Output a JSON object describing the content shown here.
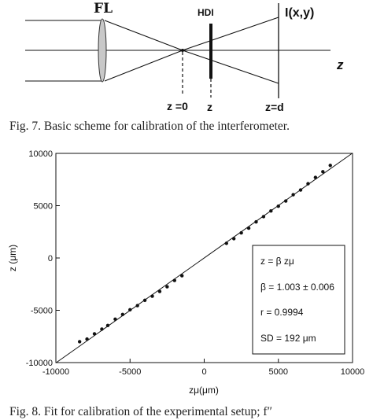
{
  "figure7": {
    "labels": {
      "lens": "FL",
      "hdi": "HDI",
      "intensity": "I(x,y)",
      "axis": "z",
      "z0": "z =0",
      "z": "z",
      "zd": "z=d"
    },
    "caption": "Fig. 7.   Basic scheme for calibration of the interferometer."
  },
  "figure8": {
    "caption": "Fig. 8.   Fit for calibration of the experimental setup; f″",
    "fitbox": [
      "z = β zμ",
      "β = 1.003 ± 0.006",
      "r = 0.9994",
      "SD = 192 μm"
    ]
  },
  "chart_data": {
    "type": "scatter",
    "xlabel": "zμ(μm)",
    "ylabel": "z (μm)",
    "xlim": [
      -10000,
      10000
    ],
    "ylim": [
      -10000,
      10000
    ],
    "xticks": [
      -10000,
      -5000,
      0,
      5000,
      10000
    ],
    "yticks": [
      -10000,
      -5000,
      0,
      5000,
      10000
    ],
    "grid": false,
    "series": [
      {
        "type": "scatter",
        "x": [
          -8400,
          -7900,
          -7400,
          -6900,
          -6500,
          -6000,
          -5500,
          -5000,
          -4500,
          -4000,
          -3500,
          -3000,
          -2500,
          -2000,
          -1500,
          1500,
          2000,
          2500,
          3000,
          3500,
          4000,
          4500,
          5000,
          5500,
          6000,
          6500,
          7000,
          7500,
          8000,
          8500
        ],
        "y": [
          -8000,
          -7750,
          -7250,
          -6800,
          -6450,
          -5850,
          -5400,
          -4950,
          -4550,
          -4050,
          -3650,
          -3200,
          -2750,
          -2150,
          -1700,
          1400,
          1850,
          2400,
          2850,
          3450,
          3950,
          4500,
          4950,
          5450,
          6050,
          6500,
          7100,
          7700,
          8250,
          8850
        ]
      },
      {
        "type": "line",
        "x": [
          -10000,
          10000
        ],
        "y": [
          -10030,
          10030
        ]
      }
    ]
  }
}
